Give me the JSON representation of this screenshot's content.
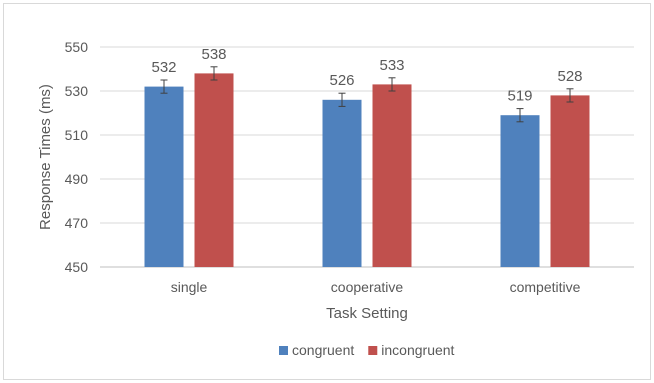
{
  "chart_data": {
    "type": "bar",
    "title": "",
    "xlabel": "Task Setting",
    "ylabel": "Response Times (ms)",
    "ylim": [
      450,
      550
    ],
    "yticks": [
      450,
      470,
      490,
      510,
      530,
      550
    ],
    "categories": [
      "single",
      "cooperative",
      "competitive"
    ],
    "series": [
      {
        "name": "congruent",
        "color": "#4f81bd",
        "values": [
          532,
          526,
          519
        ],
        "error": [
          3,
          3,
          3
        ]
      },
      {
        "name": "incongruent",
        "color": "#c0504d",
        "values": [
          538,
          533,
          528
        ],
        "error": [
          3,
          3,
          3
        ]
      }
    ],
    "data_labels": true,
    "grid": true,
    "legend_position": "bottom"
  }
}
